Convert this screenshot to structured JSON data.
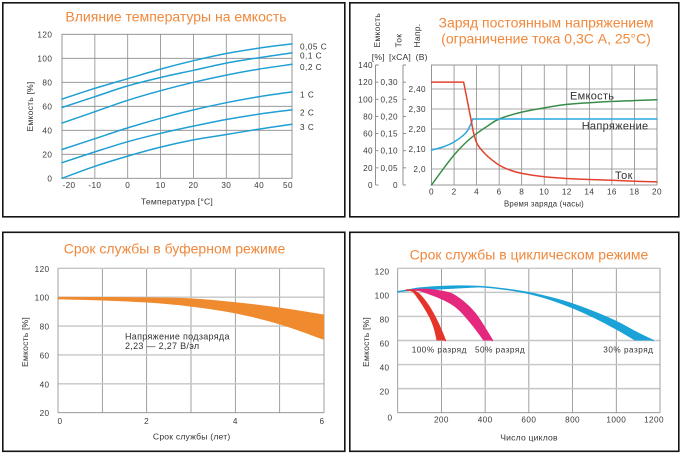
{
  "theme": {
    "title_color": "#f0883c",
    "panel_border_color": "#151515"
  },
  "chart_data": [
    {
      "type": "line",
      "title": "Влияние температуры на емкость",
      "xlabel": "Температура [°C]",
      "ylabel": "Емкость [%]",
      "xlim": [
        -20,
        50
      ],
      "ylim": [
        0,
        120
      ],
      "xticks": [
        -20,
        -10,
        0,
        10,
        20,
        30,
        40,
        50
      ],
      "xtick_labels": [
        "-20",
        "-10",
        "0",
        "10",
        "20",
        "30",
        "40",
        "50"
      ],
      "yticks": [
        0,
        20,
        40,
        60,
        80,
        100,
        120
      ],
      "ytick_labels": [
        "0",
        "20",
        "40",
        "60",
        "80",
        "100",
        "120"
      ],
      "grid": true,
      "legend": "right",
      "color": "#1f9fd3",
      "x": [
        -20,
        -10,
        0,
        10,
        20,
        30,
        40,
        50
      ],
      "series": [
        {
          "name": "0,05 C",
          "values": [
            66,
            75,
            83,
            91,
            98,
            104,
            108.5,
            112
          ]
        },
        {
          "name": "0,1 C",
          "values": [
            59,
            68,
            77,
            84,
            90,
            96,
            100.5,
            104.5
          ]
        },
        {
          "name": "0,2 C",
          "values": [
            46,
            55.5,
            65,
            73,
            80,
            86,
            91,
            95
          ]
        },
        {
          "name": "1 C",
          "values": [
            24,
            33,
            42,
            50,
            57,
            63,
            68,
            72
          ]
        },
        {
          "name": "2 C",
          "values": [
            13,
            22,
            30.5,
            37.5,
            43.5,
            49,
            53.5,
            57
          ]
        },
        {
          "name": "3 C",
          "values": [
            0,
            10,
            18.5,
            26,
            32,
            36.5,
            41,
            45
          ]
        }
      ]
    },
    {
      "type": "line",
      "title": "Заряд постоянным напряжением",
      "subtitle": "(ограничение тока 0,3С А, 25°С)",
      "xlabel": "Время заряда (часы)",
      "xlim": [
        0,
        20
      ],
      "xticks": [
        0,
        2,
        4,
        6,
        8,
        10,
        12,
        14,
        16,
        18,
        20
      ],
      "xtick_labels": [
        "0",
        "2",
        "4",
        "6",
        "8",
        "10",
        "12",
        "14",
        "16",
        "18",
        "20"
      ],
      "grid": true,
      "axes": [
        {
          "label": "Емкость",
          "unit": "[%]",
          "ylim": [
            0,
            140
          ],
          "ticks": [
            0,
            20,
            40,
            60,
            80,
            100,
            120,
            140
          ],
          "tick_labels": [
            "0",
            "20",
            "40",
            "60",
            "80",
            "100",
            "120",
            "140"
          ]
        },
        {
          "label": "Ток",
          "unit": "[xCA]",
          "ylim": [
            0,
            0.35
          ],
          "ticks": [
            0,
            0.05,
            0.1,
            0.15,
            0.2,
            0.25,
            0.3
          ],
          "tick_labels": [
            "0",
            "0,05",
            "0,10",
            "0,15",
            "0,20",
            "0,25",
            "0,30"
          ]
        },
        {
          "label": "Напр.",
          "unit": "(В)",
          "ylim": [
            1.92,
            2.52
          ],
          "ticks": [
            2.0,
            2.1,
            2.2,
            2.3,
            2.4
          ],
          "tick_labels": [
            "2,0",
            "2,10",
            "2,20",
            "2,30",
            "2,40"
          ]
        }
      ],
      "series": [
        {
          "name": "Емкость",
          "axis": 0,
          "color": "#3a8d48",
          "x": [
            0,
            1,
            2,
            3,
            4,
            5,
            6,
            8,
            10,
            12,
            14,
            16,
            18,
            20
          ],
          "y": [
            0,
            18,
            35,
            49,
            60,
            69,
            77,
            85,
            90,
            94,
            96,
            97.5,
            98.5,
            99.5
          ]
        },
        {
          "name": "Напряжение",
          "axis": 2,
          "color": "#2aa7dd",
          "x": [
            0,
            1,
            2,
            3,
            3.45,
            3.65,
            20
          ],
          "y": [
            2.095,
            2.11,
            2.135,
            2.178,
            2.22,
            2.25,
            2.25
          ]
        },
        {
          "name": "Ток",
          "axis": 1,
          "color": "#e2432f",
          "x": [
            0,
            2.85,
            3.15,
            3.45,
            3.75,
            4.05,
            4.5,
            5,
            6,
            7,
            8,
            10,
            12,
            14,
            16,
            18,
            20
          ],
          "y": [
            0.3,
            0.3,
            0.25,
            0.2,
            0.15,
            0.12,
            0.1,
            0.083,
            0.058,
            0.043,
            0.034,
            0.024,
            0.019,
            0.016,
            0.014,
            0.011,
            0.009
          ]
        }
      ]
    },
    {
      "type": "area",
      "title": "Срок службы в буферном режиме",
      "xlabel": "Срок службы (лет)",
      "ylabel": "Емкость [%]",
      "xlim": [
        0,
        6
      ],
      "ylim": [
        20,
        120
      ],
      "xticks": [
        0,
        2,
        4,
        6
      ],
      "xtick_labels": [
        "0",
        "2",
        "4",
        "6"
      ],
      "x_grid_step": 1,
      "yticks": [
        20,
        40,
        60,
        80,
        100,
        120
      ],
      "ytick_labels": [
        "20",
        "40",
        "60",
        "80",
        "100",
        "120"
      ],
      "grid": true,
      "color": "#f08a2e",
      "x": [
        0,
        1,
        2,
        3,
        4,
        5,
        6
      ],
      "band": {
        "upper": [
          100.2,
          100.1,
          99.9,
          99.2,
          96.5,
          92.8,
          88
        ],
        "lower": [
          98.5,
          97.7,
          96.3,
          93.5,
          88.8,
          81.2,
          70.5
        ]
      },
      "annotation": [
        "Напряжение подзаряда",
        "2,23 — 2,27 В/эл"
      ]
    },
    {
      "type": "area",
      "title": "Срок службы в циклическом режиме",
      "xlabel": "Число циклов",
      "ylabel": "Емкость [%]",
      "xlim": [
        0,
        1200
      ],
      "ylim": [
        0,
        120
      ],
      "xticks": [
        200,
        400,
        600,
        800,
        1000,
        1200
      ],
      "xtick_labels": [
        "200",
        "400",
        "600",
        "800",
        "1000",
        "1200"
      ],
      "x_grid_step": 200,
      "yticks": [
        0,
        20,
        40,
        60,
        80,
        100,
        120
      ],
      "ytick_labels": [
        "0",
        "20",
        "40",
        "60",
        "80",
        "100",
        "120"
      ],
      "grid": true,
      "series": [
        {
          "name": "30% разряд",
          "color": "#1ba3d8",
          "outer": [
            [
              0,
              100.5
            ],
            [
              50,
              102
            ],
            [
              100,
              103.5
            ],
            [
              200,
              104.8
            ],
            [
              300,
              105.2
            ],
            [
              400,
              104.5
            ],
            [
              500,
              102.5
            ],
            [
              600,
              99.7
            ],
            [
              700,
              95.5
            ],
            [
              800,
              90.3
            ],
            [
              900,
              83.5
            ],
            [
              1000,
              75.6
            ],
            [
              1100,
              66
            ],
            [
              1169,
              60
            ]
          ],
          "inner": [
            [
              400,
              104.5
            ],
            [
              500,
              102
            ],
            [
              600,
              98.5
            ],
            [
              700,
              93.5
            ],
            [
              800,
              86.7
            ],
            [
              900,
              78.5
            ],
            [
              1000,
              69
            ],
            [
              1085,
              60
            ]
          ]
        },
        {
          "name": "50% разряд",
          "color": "#e3287e",
          "outer": [
            [
              60,
              102
            ],
            [
              120,
              102.5
            ],
            [
              180,
              101.5
            ],
            [
              240,
              99.2
            ],
            [
              280,
              95
            ],
            [
              320,
              89
            ],
            [
              360,
              81
            ],
            [
              400,
              70
            ],
            [
              433,
              60
            ]
          ],
          "inner": [
            [
              60,
              102
            ],
            [
              100,
              101
            ],
            [
              140,
              98.5
            ],
            [
              190,
              95
            ],
            [
              240,
              90.5
            ],
            [
              280,
              85
            ],
            [
              320,
              77
            ],
            [
              360,
              68
            ],
            [
              392,
              60
            ]
          ]
        },
        {
          "name": "100% разряд",
          "color": "#e5352b",
          "outer": [
            [
              40,
              102
            ],
            [
              70,
              101.5
            ],
            [
              95,
              99
            ],
            [
              120,
              94
            ],
            [
              140,
              89
            ],
            [
              160,
              83
            ],
            [
              180,
              76
            ],
            [
              200,
              68
            ],
            [
              218,
              60
            ]
          ],
          "inner": [
            [
              40,
              102
            ],
            [
              60,
              101
            ],
            [
              75,
              99
            ],
            [
              95,
              94
            ],
            [
              110,
              90
            ],
            [
              130,
              84
            ],
            [
              148,
              78
            ],
            [
              165,
              70
            ],
            [
              178,
              60
            ]
          ]
        }
      ]
    }
  ]
}
